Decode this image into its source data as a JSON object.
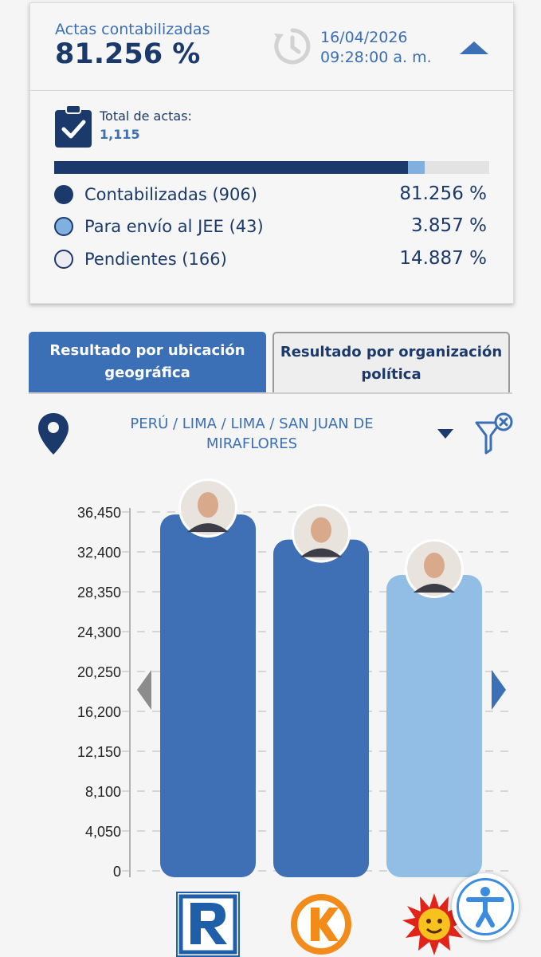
{
  "summary": {
    "actas_label": "Actas contabilizadas",
    "actas_percent": "81.256 %",
    "date": "16/04/2026",
    "time": "09:28:00 a. m.",
    "total_label": "Total de actas:",
    "total_value": "1,115",
    "progress_fractions": [
      0.81256,
      0.03857,
      0.14887
    ],
    "legend": [
      {
        "label": "Contabilizadas (906)",
        "percent": "81.256 %",
        "color": "#1b3a6b"
      },
      {
        "label": "Para envío al JEE (43)",
        "percent": "3.857 %",
        "color": "#7fb0e0"
      },
      {
        "label": "Pendientes (166)",
        "percent": "14.887 %",
        "color": "#ececf2"
      }
    ]
  },
  "tabs": [
    {
      "label": "Resultado por ubicación geográfica",
      "active": true
    },
    {
      "label": "Resultado por organización política",
      "active": false
    }
  ],
  "location": {
    "path": "PERÚ / LIMA / LIMA / SAN JUAN DE MIRAFLORES"
  },
  "chart_data": {
    "type": "bar",
    "categories": [
      "Renovación Popular",
      "Fuerza Popular",
      "Partido Cívico Obras"
    ],
    "values": [
      36200,
      33650,
      30050
    ],
    "colors": [
      "#3f6fb5",
      "#3f6fb5",
      "#92bde4"
    ],
    "yticks": [
      "36,450",
      "32,400",
      "28,350",
      "24,300",
      "20,250",
      "16,200",
      "12,150",
      "8,100",
      "4,050",
      "0"
    ],
    "ylim": [
      0,
      36450
    ],
    "grid": true
  },
  "icons": {
    "clock": "clock-refresh-icon",
    "clipboard": "clipboard-check-icon",
    "location": "location-pin-icon",
    "filter": "filter-clear-icon",
    "accessibility": "accessibility-icon"
  }
}
